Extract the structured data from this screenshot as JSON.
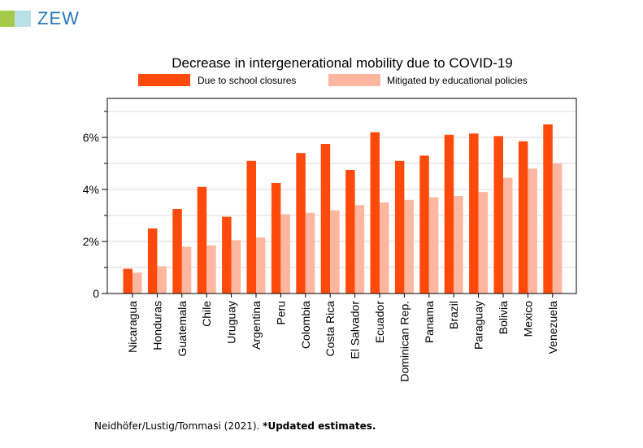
{
  "header": {
    "logo_text": "ZEW",
    "colors": {
      "logo_green": "#a7c94a",
      "logo_cyan": "#b8e0e6",
      "logo_blue": "#2a78b8"
    }
  },
  "chart_data": {
    "type": "bar",
    "title": "Decrease in intergenerational mobility due to COVID-19",
    "xlabel": "",
    "ylabel": "",
    "ylim": [
      0,
      7.5
    ],
    "y_ticks": [
      0,
      2,
      4,
      6
    ],
    "y_tick_labels": [
      "0",
      "2%",
      "4%",
      "6%"
    ],
    "grid": true,
    "legend_position": "top",
    "categories": [
      "Nicaragua",
      "Honduras",
      "Guatemala",
      "Chile",
      "Uruguay",
      "Argentina",
      "Peru",
      "Colombia",
      "Costa Rica",
      "El Salvador",
      "Ecuador",
      "Dominican Rep.",
      "Panama",
      "Brazil",
      "Paraguay",
      "Bolivia",
      "Mexico",
      "Venezuela"
    ],
    "series": [
      {
        "name": "Due to school closures",
        "color": "#ff4a0c",
        "values": [
          0.95,
          2.5,
          3.25,
          4.1,
          2.95,
          5.1,
          4.25,
          5.4,
          5.75,
          4.75,
          6.2,
          5.1,
          5.3,
          6.1,
          6.15,
          6.05,
          5.85,
          6.5
        ]
      },
      {
        "name": "Mitigated by educational policies",
        "color": "#fdb6a0",
        "values": [
          0.8,
          1.05,
          1.8,
          1.85,
          2.05,
          2.15,
          3.05,
          3.1,
          3.2,
          3.4,
          3.5,
          3.6,
          3.7,
          3.75,
          3.9,
          4.45,
          4.8,
          5.0
        ]
      }
    ]
  },
  "source": {
    "citation": "Neidhöfer/Lustig/Tommasi (2021). ",
    "note": "*Updated estimates."
  }
}
